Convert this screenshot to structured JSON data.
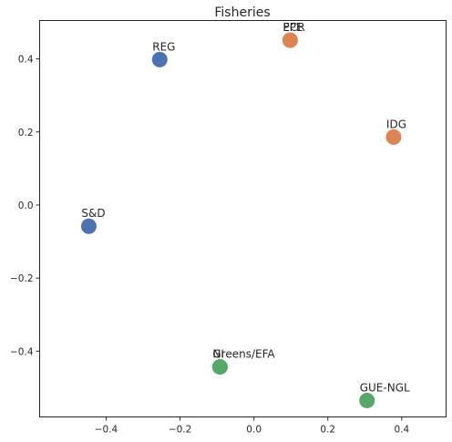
{
  "chart_data": {
    "type": "scatter",
    "title": "Fisheries",
    "xlabel": "",
    "ylabel": "",
    "xlim": [
      -0.58,
      0.52
    ],
    "ylim": [
      -0.58,
      0.505
    ],
    "x_ticks": [
      -0.4,
      -0.2,
      0.0,
      0.2,
      0.4
    ],
    "x_tick_labels": [
      "−0.4",
      "−0.2",
      "0.0",
      "0.2",
      "0.4"
    ],
    "y_ticks": [
      -0.4,
      -0.2,
      0.0,
      0.2,
      0.4
    ],
    "y_tick_labels": [
      "−0.4",
      "−0.2",
      "0.0",
      "0.2",
      "0.4"
    ],
    "grid": false,
    "legend": "none",
    "group_colors": {
      "blue": "#4c72b0",
      "orange": "#dd8452",
      "green": "#55a868"
    },
    "points": [
      {
        "label": "REG",
        "x": -0.255,
        "y": 0.398,
        "group": "blue"
      },
      {
        "label": "S&D",
        "x": -0.447,
        "y": -0.058,
        "group": "blue"
      },
      {
        "label": "ECR",
        "x": 0.098,
        "y": 0.451,
        "group": "orange"
      },
      {
        "label": "PPE",
        "x": 0.098,
        "y": 0.451,
        "group": "orange"
      },
      {
        "label": "IDG",
        "x": 0.378,
        "y": 0.186,
        "group": "orange"
      },
      {
        "label": "NI",
        "x": -0.092,
        "y": -0.443,
        "group": "green"
      },
      {
        "label": "Greens/EFA",
        "x": -0.092,
        "y": -0.443,
        "group": "green"
      },
      {
        "label": "GUE-NGL",
        "x": 0.306,
        "y": -0.535,
        "group": "green"
      }
    ]
  }
}
